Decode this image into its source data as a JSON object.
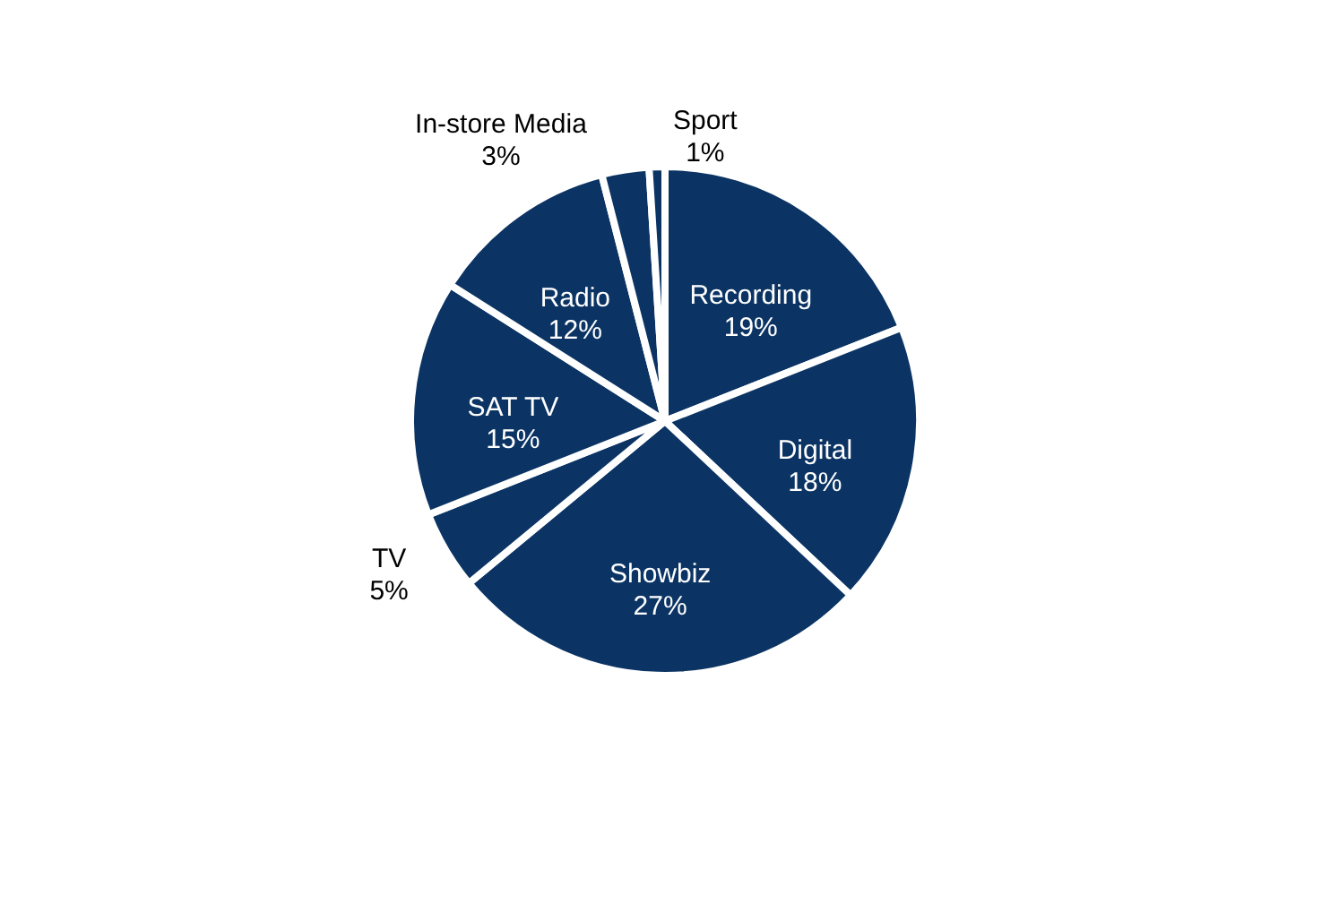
{
  "chart_data": {
    "type": "pie",
    "categories": [
      "Recording",
      "Digital",
      "Showbiz",
      "TV",
      "SAT TV",
      "Radio",
      "In-store Media",
      "Sport"
    ],
    "values": [
      19,
      18,
      27,
      5,
      15,
      12,
      3,
      1
    ],
    "value_labels": [
      "19%",
      "18%",
      "27%",
      "5%",
      "15%",
      "12%",
      "3%",
      "1%"
    ],
    "colors": [
      "#0b3464",
      "#0b3464",
      "#0b3464",
      "#0b3464",
      "#0b3464",
      "#0b3464",
      "#0b3464",
      "#0b3464"
    ]
  }
}
